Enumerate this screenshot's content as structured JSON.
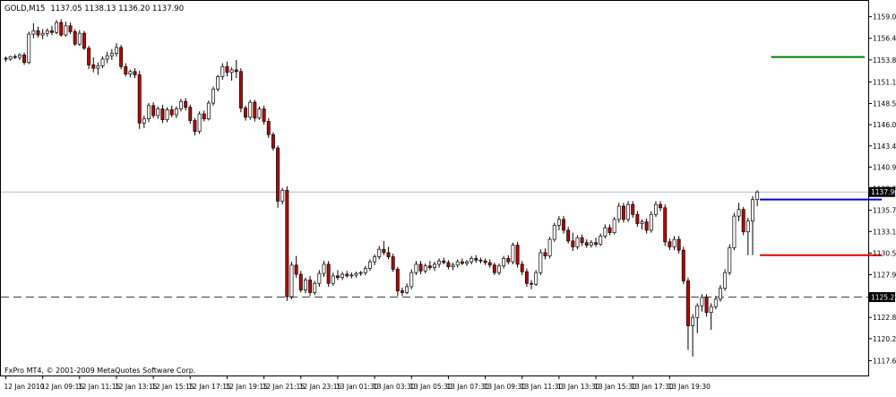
{
  "header": {
    "symbol": "GOLD,M15",
    "ohlc": "1137.05 1138.13 1136.20 1137.90"
  },
  "footer": {
    "copyright": "FxPro MT4, © 2001-2009 MetaQuotes Software Corp."
  },
  "colors": {
    "bull_fill": "#ffffff",
    "bear_fill": "#c00000",
    "candle_outline": "#000000",
    "bid_line": "#a9b8d6",
    "green_level": "#008000",
    "blue_level": "#0000cc",
    "red_level": "#e00000",
    "support_line": "#555555",
    "price_box": "#000000"
  },
  "chart_data": {
    "type": "candlestick",
    "symbol": "GOLD",
    "timeframe": "M15",
    "y_range": [
      1117.0,
      1159.5
    ],
    "y_ticks": [
      "1159.00",
      "1156.40",
      "1153.80",
      "1151.15",
      "1148.55",
      "1146.00",
      "1143.45",
      "1140.90",
      "1138.30",
      "1135.70",
      "1133.15",
      "1130.55",
      "1127.95",
      "1125.40",
      "1122.80",
      "1120.25",
      "1117.60"
    ],
    "x_labels": [
      "12 Jan 2010",
      "12 Jan 09:15",
      "12 Jan 11:15",
      "12 Jan 13:15",
      "12 Jan 15:15",
      "12 Jan 17:15",
      "12 Jan 19:15",
      "12 Jan 21:15",
      "12 Jan 23:15",
      "13 Jan 01:30",
      "13 Jan 03:30",
      "13 Jan 05:30",
      "13 Jan 07:30",
      "13 Jan 09:30",
      "13 Jan 11:30",
      "13 Jan 13:30",
      "13 Jan 15:30",
      "13 Jan 17:30",
      "13 Jan 19:30"
    ],
    "current_price": "1137.90",
    "horizontal_lines": [
      {
        "price": 1137.9,
        "style": "bid",
        "label": "1137.90"
      },
      {
        "price": 1125.25,
        "style": "dashed",
        "label": "1125.25"
      },
      {
        "price": 1154.15,
        "style": "green-level",
        "from_candle": 166
      },
      {
        "price": 1137.0,
        "style": "blue-level",
        "from_candle": 190
      },
      {
        "price": 1130.3,
        "style": "red-level",
        "from_candle": 190
      }
    ],
    "candles": [
      [
        1154.0,
        1154.2,
        1153.6,
        1153.9
      ],
      [
        1153.9,
        1154.3,
        1153.7,
        1154.2
      ],
      [
        1154.2,
        1154.5,
        1153.9,
        1154.1
      ],
      [
        1154.1,
        1154.6,
        1153.8,
        1154.4
      ],
      [
        1154.4,
        1154.7,
        1153.2,
        1153.5
      ],
      [
        1153.5,
        1157.2,
        1153.3,
        1156.9
      ],
      [
        1156.9,
        1158.2,
        1156.4,
        1157.3
      ],
      [
        1157.3,
        1157.8,
        1156.5,
        1156.8
      ],
      [
        1156.8,
        1157.5,
        1156.3,
        1157.0
      ],
      [
        1157.0,
        1157.6,
        1156.6,
        1157.3
      ],
      [
        1157.3,
        1157.9,
        1156.8,
        1157.1
      ],
      [
        1157.1,
        1158.6,
        1156.9,
        1158.3
      ],
      [
        1158.3,
        1158.7,
        1156.6,
        1156.8
      ],
      [
        1156.8,
        1158.4,
        1156.6,
        1157.9
      ],
      [
        1157.9,
        1158.3,
        1156.9,
        1157.2
      ],
      [
        1157.2,
        1157.5,
        1155.5,
        1155.7
      ],
      [
        1155.7,
        1157.4,
        1155.5,
        1157.0
      ],
      [
        1157.0,
        1157.3,
        1155.0,
        1155.2
      ],
      [
        1155.2,
        1155.5,
        1152.7,
        1153.2
      ],
      [
        1153.2,
        1154.1,
        1152.3,
        1152.8
      ],
      [
        1152.8,
        1153.5,
        1152.0,
        1153.1
      ],
      [
        1153.1,
        1154.2,
        1152.8,
        1153.9
      ],
      [
        1153.9,
        1154.8,
        1153.4,
        1154.3
      ],
      [
        1154.3,
        1155.1,
        1153.8,
        1154.6
      ],
      [
        1154.6,
        1155.8,
        1154.2,
        1155.3
      ],
      [
        1155.3,
        1155.6,
        1152.7,
        1153.0
      ],
      [
        1153.0,
        1153.4,
        1151.8,
        1152.1
      ],
      [
        1152.1,
        1152.6,
        1151.7,
        1152.4
      ],
      [
        1152.4,
        1152.8,
        1151.6,
        1152.0
      ],
      [
        1152.0,
        1152.5,
        1145.5,
        1146.2
      ],
      [
        1146.2,
        1147.1,
        1145.6,
        1146.7
      ],
      [
        1146.7,
        1148.6,
        1146.3,
        1148.3
      ],
      [
        1148.3,
        1148.7,
        1146.8,
        1147.1
      ],
      [
        1147.1,
        1148.2,
        1146.7,
        1147.9
      ],
      [
        1147.9,
        1148.4,
        1146.2,
        1146.6
      ],
      [
        1146.6,
        1148.1,
        1146.3,
        1147.8
      ],
      [
        1147.8,
        1148.3,
        1146.9,
        1147.2
      ],
      [
        1147.2,
        1148.2,
        1146.8,
        1147.9
      ],
      [
        1147.9,
        1149.1,
        1147.6,
        1148.8
      ],
      [
        1148.8,
        1149.2,
        1147.7,
        1148.1
      ],
      [
        1148.1,
        1148.4,
        1146.1,
        1146.5
      ],
      [
        1146.5,
        1146.8,
        1144.7,
        1145.2
      ],
      [
        1145.2,
        1147.6,
        1144.9,
        1147.3
      ],
      [
        1147.3,
        1147.7,
        1146.4,
        1146.7
      ],
      [
        1146.7,
        1148.9,
        1146.5,
        1148.6
      ],
      [
        1148.6,
        1150.6,
        1148.3,
        1150.3
      ],
      [
        1150.3,
        1152.0,
        1150.0,
        1151.8
      ],
      [
        1151.8,
        1153.4,
        1151.4,
        1153.0
      ],
      [
        1153.0,
        1153.6,
        1151.8,
        1152.3
      ],
      [
        1152.3,
        1152.9,
        1151.3,
        1152.6
      ],
      [
        1152.6,
        1153.8,
        1151.6,
        1152.4
      ],
      [
        1152.4,
        1152.8,
        1147.5,
        1148.0
      ],
      [
        1148.0,
        1148.3,
        1146.5,
        1146.9
      ],
      [
        1146.9,
        1149.0,
        1146.6,
        1148.7
      ],
      [
        1148.7,
        1149.0,
        1146.4,
        1146.8
      ],
      [
        1146.8,
        1148.2,
        1146.6,
        1147.9
      ],
      [
        1147.9,
        1148.3,
        1146.0,
        1146.4
      ],
      [
        1146.4,
        1146.8,
        1144.4,
        1144.8
      ],
      [
        1144.8,
        1145.1,
        1142.9,
        1143.2
      ],
      [
        1143.2,
        1143.5,
        1136.0,
        1136.8
      ],
      [
        1136.8,
        1138.4,
        1136.4,
        1138.1
      ],
      [
        1138.1,
        1138.6,
        1124.8,
        1125.3
      ],
      [
        1125.3,
        1129.5,
        1125.0,
        1129.1
      ],
      [
        1129.1,
        1130.2,
        1127.6,
        1128.0
      ],
      [
        1128.0,
        1128.4,
        1125.8,
        1126.1
      ],
      [
        1126.1,
        1127.6,
        1125.7,
        1127.3
      ],
      [
        1127.3,
        1127.8,
        1125.4,
        1125.8
      ],
      [
        1125.8,
        1127.2,
        1125.5,
        1126.9
      ],
      [
        1126.9,
        1128.5,
        1126.5,
        1128.1
      ],
      [
        1128.1,
        1129.6,
        1127.7,
        1129.2
      ],
      [
        1129.2,
        1129.6,
        1126.5,
        1126.9
      ],
      [
        1126.9,
        1128.2,
        1126.6,
        1127.8
      ],
      [
        1127.8,
        1128.5,
        1127.3,
        1127.6
      ],
      [
        1127.6,
        1128.3,
        1127.3,
        1128.0
      ],
      [
        1128.0,
        1128.4,
        1127.6,
        1127.8
      ],
      [
        1127.8,
        1128.2,
        1127.5,
        1127.9
      ],
      [
        1127.9,
        1128.3,
        1127.6,
        1128.1
      ],
      [
        1128.1,
        1128.4,
        1127.8,
        1128.2
      ],
      [
        1128.2,
        1129.0,
        1127.9,
        1128.7
      ],
      [
        1128.7,
        1129.8,
        1128.4,
        1129.5
      ],
      [
        1129.5,
        1130.4,
        1129.1,
        1130.1
      ],
      [
        1130.1,
        1131.4,
        1129.8,
        1131.0
      ],
      [
        1131.0,
        1132.0,
        1130.3,
        1130.6
      ],
      [
        1130.6,
        1131.3,
        1129.8,
        1130.1
      ],
      [
        1130.1,
        1130.5,
        1128.3,
        1128.6
      ],
      [
        1128.6,
        1128.9,
        1125.4,
        1126.0
      ],
      [
        1126.0,
        1126.4,
        1125.4,
        1125.8
      ],
      [
        1125.8,
        1126.9,
        1125.6,
        1126.5
      ],
      [
        1126.5,
        1128.6,
        1126.2,
        1128.2
      ],
      [
        1128.2,
        1129.6,
        1127.9,
        1129.2
      ],
      [
        1129.2,
        1129.6,
        1128.0,
        1128.4
      ],
      [
        1128.4,
        1129.3,
        1128.1,
        1129.0
      ],
      [
        1129.0,
        1129.6,
        1128.5,
        1128.8
      ],
      [
        1128.8,
        1129.5,
        1128.4,
        1129.2
      ],
      [
        1129.2,
        1129.9,
        1128.8,
        1129.6
      ],
      [
        1129.6,
        1130.0,
        1129.2,
        1129.4
      ],
      [
        1129.4,
        1129.7,
        1128.6,
        1128.9
      ],
      [
        1128.9,
        1129.4,
        1128.5,
        1129.1
      ],
      [
        1129.1,
        1129.8,
        1128.8,
        1129.5
      ],
      [
        1129.5,
        1129.9,
        1129.1,
        1129.3
      ],
      [
        1129.3,
        1129.7,
        1129.0,
        1129.5
      ],
      [
        1129.5,
        1130.2,
        1129.2,
        1129.9
      ],
      [
        1129.9,
        1130.3,
        1129.4,
        1129.7
      ],
      [
        1129.7,
        1130.0,
        1129.3,
        1129.6
      ],
      [
        1129.6,
        1129.9,
        1129.1,
        1129.4
      ],
      [
        1129.4,
        1129.8,
        1128.8,
        1129.1
      ],
      [
        1129.1,
        1129.4,
        1127.9,
        1128.2
      ],
      [
        1128.2,
        1129.3,
        1127.9,
        1129.0
      ],
      [
        1129.0,
        1130.2,
        1128.7,
        1129.9
      ],
      [
        1129.9,
        1130.3,
        1129.2,
        1129.5
      ],
      [
        1129.5,
        1131.8,
        1129.2,
        1131.5
      ],
      [
        1131.5,
        1131.9,
        1128.8,
        1129.2
      ],
      [
        1129.2,
        1129.6,
        1127.9,
        1128.3
      ],
      [
        1128.3,
        1128.7,
        1126.5,
        1126.9
      ],
      [
        1126.9,
        1127.3,
        1126.2,
        1126.8
      ],
      [
        1126.8,
        1128.5,
        1126.6,
        1128.2
      ],
      [
        1128.2,
        1131.0,
        1127.9,
        1130.6
      ],
      [
        1130.6,
        1131.1,
        1129.8,
        1130.2
      ],
      [
        1130.2,
        1132.5,
        1129.9,
        1132.2
      ],
      [
        1132.2,
        1134.2,
        1131.9,
        1133.9
      ],
      [
        1133.9,
        1135.0,
        1133.3,
        1134.6
      ],
      [
        1134.6,
        1135.0,
        1132.9,
        1133.3
      ],
      [
        1133.3,
        1133.7,
        1131.7,
        1132.0
      ],
      [
        1132.0,
        1133.0,
        1130.8,
        1131.3
      ],
      [
        1131.3,
        1132.7,
        1131.0,
        1132.4
      ],
      [
        1132.4,
        1132.8,
        1131.4,
        1131.8
      ],
      [
        1131.8,
        1132.2,
        1131.2,
        1131.5
      ],
      [
        1131.5,
        1132.1,
        1131.2,
        1131.8
      ],
      [
        1131.8,
        1132.4,
        1131.3,
        1131.6
      ],
      [
        1131.6,
        1132.9,
        1131.4,
        1132.6
      ],
      [
        1132.6,
        1134.0,
        1132.3,
        1133.6
      ],
      [
        1133.6,
        1134.0,
        1132.7,
        1133.0
      ],
      [
        1133.0,
        1134.9,
        1132.8,
        1134.6
      ],
      [
        1134.6,
        1136.6,
        1134.2,
        1136.2
      ],
      [
        1136.2,
        1136.6,
        1134.2,
        1134.6
      ],
      [
        1134.6,
        1136.8,
        1134.3,
        1136.4
      ],
      [
        1136.4,
        1136.8,
        1134.8,
        1135.2
      ],
      [
        1135.2,
        1135.6,
        1133.7,
        1134.1
      ],
      [
        1134.1,
        1134.6,
        1133.4,
        1134.3
      ],
      [
        1134.3,
        1134.7,
        1132.9,
        1133.3
      ],
      [
        1133.3,
        1135.6,
        1133.0,
        1135.2
      ],
      [
        1135.2,
        1136.8,
        1134.9,
        1136.4
      ],
      [
        1136.4,
        1136.8,
        1135.6,
        1136.0
      ],
      [
        1136.0,
        1136.4,
        1131.4,
        1131.9
      ],
      [
        1131.9,
        1132.3,
        1130.9,
        1131.3
      ],
      [
        1131.3,
        1132.6,
        1130.9,
        1132.2
      ],
      [
        1132.2,
        1132.6,
        1130.5,
        1130.9
      ],
      [
        1130.9,
        1131.3,
        1126.8,
        1127.2
      ],
      [
        1127.2,
        1127.6,
        1118.9,
        1121.8
      ],
      [
        1121.8,
        1123.2,
        1118.1,
        1122.8
      ],
      [
        1122.8,
        1124.5,
        1120.9,
        1124.2
      ],
      [
        1124.2,
        1125.6,
        1123.5,
        1125.2
      ],
      [
        1125.2,
        1125.6,
        1122.9,
        1123.4
      ],
      [
        1123.4,
        1124.5,
        1121.3,
        1124.1
      ],
      [
        1124.1,
        1125.4,
        1123.8,
        1125.0
      ],
      [
        1125.0,
        1126.7,
        1124.7,
        1126.3
      ],
      [
        1126.3,
        1128.6,
        1126.0,
        1128.2
      ],
      [
        1128.2,
        1131.6,
        1127.9,
        1131.2
      ],
      [
        1131.2,
        1135.4,
        1130.9,
        1135.0
      ],
      [
        1135.0,
        1136.6,
        1134.4,
        1135.8
      ],
      [
        1135.8,
        1136.1,
        1132.7,
        1133.1
      ],
      [
        1133.1,
        1134.8,
        1130.3,
        1134.4
      ],
      [
        1134.4,
        1137.4,
        1130.3,
        1137.0
      ],
      [
        1137.0,
        1138.1,
        1136.2,
        1137.9
      ]
    ]
  }
}
